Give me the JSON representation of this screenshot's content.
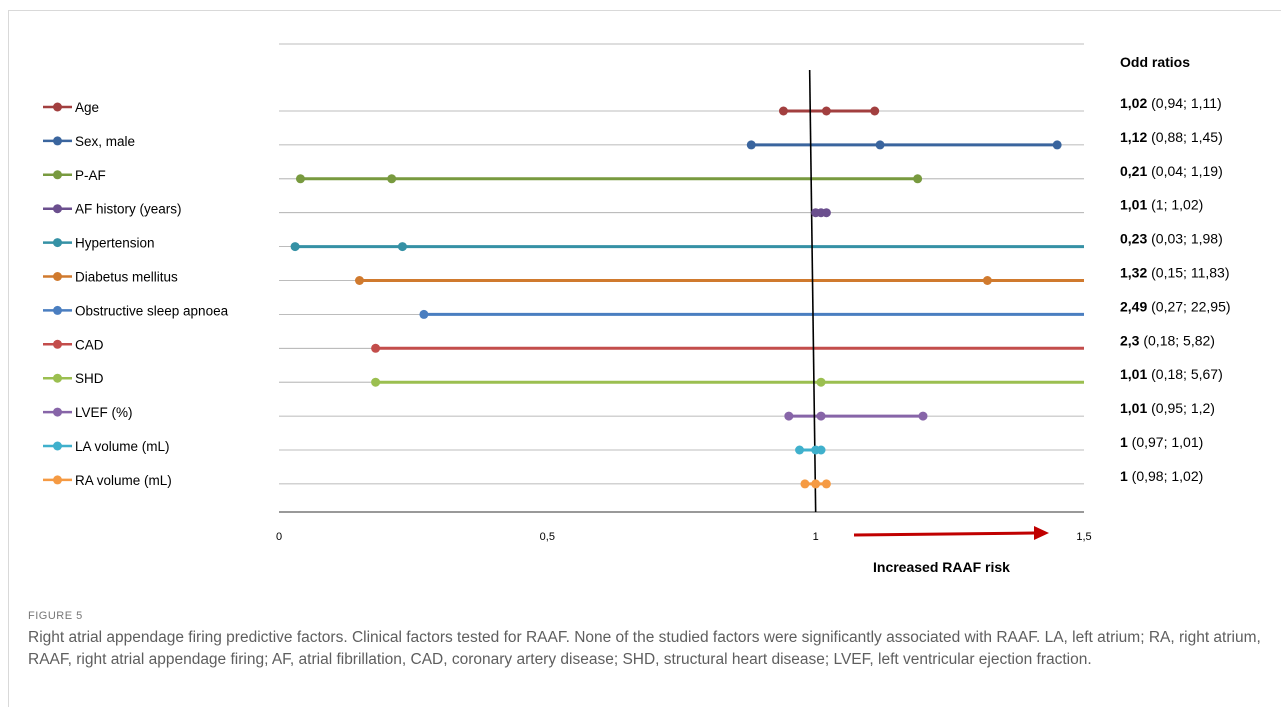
{
  "chart_data": {
    "type": "forest",
    "x_ticks": [
      {
        "value": 0,
        "label": "0"
      },
      {
        "value": 0.5,
        "label": "0,5"
      },
      {
        "value": 1,
        "label": "1"
      },
      {
        "value": 1.5,
        "label": "1,5"
      }
    ],
    "xlim": [
      0,
      1.5
    ],
    "reference_value": 1,
    "or_header": "Odd ratios",
    "arrow_label": "Increased RAAF risk",
    "rows": [
      {
        "name": "Age",
        "color": "#a23f3f",
        "or": 1.02,
        "lo": 0.94,
        "hi": 1.11,
        "or_bold": "1,02",
        "ci_text": " (0,94; 1,11)"
      },
      {
        "name": "Sex, male",
        "color": "#3a659e",
        "or": 1.12,
        "lo": 0.88,
        "hi": 1.45,
        "or_bold": "1,12",
        "ci_text": " (0,88; 1,45)"
      },
      {
        "name": "P-AF",
        "color": "#789a3f",
        "or": 0.21,
        "lo": 0.04,
        "hi": 1.19,
        "or_bold": "0,21",
        "ci_text": " (0,04; 1,19)"
      },
      {
        "name": "AF history (years)",
        "color": "#6b4f8e",
        "or": 1.01,
        "lo": 1.0,
        "hi": 1.02,
        "or_bold": "1,01",
        "ci_text": " (1; 1,02)"
      },
      {
        "name": "Hypertension",
        "color": "#3591a5",
        "or": 0.23,
        "lo": 0.03,
        "hi": 1.98,
        "or_bold": "0,23",
        "ci_text": " (0,03; 1,98)"
      },
      {
        "name": "Diabetus mellitus",
        "color": "#d07a2e",
        "or": 1.32,
        "lo": 0.15,
        "hi": 11.83,
        "or_bold": "1,32",
        "ci_text": " (0,15; 11,83)"
      },
      {
        "name": "Obstructive sleep apnoea",
        "color": "#4a7ec0",
        "or": 2.49,
        "lo": 0.27,
        "hi": 22.95,
        "or_bold": "2,49",
        "ci_text": " (0,27; 22,95)"
      },
      {
        "name": "CAD",
        "color": "#c34d4b",
        "or": 2.3,
        "lo": 0.18,
        "hi": 5.82,
        "or_bold": "2,3",
        "ci_text": " (0,18; 5,82)"
      },
      {
        "name": "SHD",
        "color": "#9bbf50",
        "or": 1.01,
        "lo": 0.18,
        "hi": 5.67,
        "or_bold": "1,01",
        "ci_text": " (0,18; 5,67)"
      },
      {
        "name": "LVEF (%)",
        "color": "#8765a8",
        "or": 1.01,
        "lo": 0.95,
        "hi": 1.2,
        "or_bold": "1,01",
        "ci_text": " (0,95; 1,2)"
      },
      {
        "name": "LA volume (mL)",
        "color": "#3fb0cc",
        "or": 1.0,
        "lo": 0.97,
        "hi": 1.01,
        "or_bold": "1",
        "ci_text": " (0,97; 1,01)"
      },
      {
        "name": "RA volume (mL)",
        "color": "#f59a43",
        "or": 1.0,
        "lo": 0.98,
        "hi": 1.02,
        "or_bold": "1",
        "ci_text": " (0,98; 1,02)"
      }
    ]
  },
  "caption": {
    "label": "FIGURE 5",
    "text": "Right atrial appendage firing predictive factors. Clinical factors tested for RAAF. None of the studied factors were significantly associated with RAAF. LA, left atrium; RA, right atrium, RAAF, right atrial appendage firing; AF, atrial fibrillation, CAD, coronary artery disease; SHD, structural heart disease; LVEF, left ventricular ejection fraction."
  },
  "colors": {
    "arrow": "#c00000",
    "gridline": "#a6a6a6",
    "reference_line": "#000000"
  }
}
